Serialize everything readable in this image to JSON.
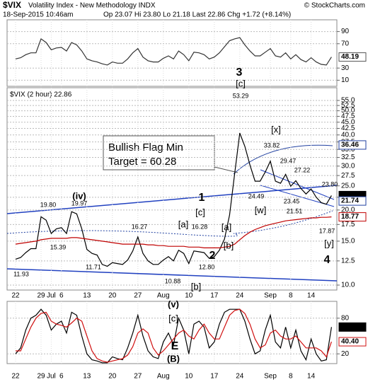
{
  "header": {
    "symbol": "$VIX",
    "name": "Volatility Index - New Methodology INDX",
    "source": "© StockCharts.com",
    "date": "18-Sep-2015 10:46am",
    "quote": "Op 23.07 Hi 23.80 Lo 21.18 Last 22.86 Chg +1.72 (+8.14%)"
  },
  "chart_data": [
    {
      "type": "line",
      "series": [
        {
          "color": "#333333",
          "values": [
            45,
            47,
            52,
            55,
            55,
            78,
            72,
            60,
            63,
            64,
            58,
            72,
            68,
            58,
            45,
            42,
            40,
            37,
            35,
            40,
            38,
            38,
            45,
            55,
            62,
            48,
            42,
            40,
            40,
            46,
            50,
            45,
            58,
            52,
            42,
            56,
            55,
            52,
            45,
            48,
            55,
            65,
            75,
            78,
            80,
            68,
            58,
            50,
            50,
            56,
            62,
            50,
            48,
            55,
            45,
            52,
            44,
            40,
            47,
            40,
            36,
            35,
            48.19
          ]
        }
      ],
      "ylim": [
        0,
        100
      ],
      "yticks": [
        90,
        70,
        30,
        10
      ],
      "grid": true,
      "markers": [
        {
          "value": 48.19,
          "color": "#555555"
        }
      ]
    },
    {
      "type": "line",
      "title": "$VIX (2 hour) 22.86",
      "categories": [
        "22",
        null,
        null,
        null,
        null,
        "29",
        null,
        "Jul",
        null,
        "6",
        null,
        null,
        null,
        null,
        "13",
        null,
        null,
        null,
        null,
        "20",
        null,
        null,
        null,
        null,
        "27",
        null,
        null,
        null,
        null,
        "Aug",
        null,
        null,
        null,
        null,
        "10",
        null,
        null,
        null,
        null,
        "17",
        null,
        null,
        null,
        null,
        "24",
        null,
        null,
        null,
        null,
        null,
        "Sep",
        null,
        null,
        null,
        "8",
        null,
        null,
        null,
        "14",
        null,
        null,
        null,
        null
      ],
      "series": [
        {
          "color": "#000000",
          "values": [
            12.7,
            12.9,
            13.5,
            14.0,
            14.0,
            18.8,
            18.2,
            16.1,
            16.8,
            17.0,
            16.1,
            19.7,
            19.3,
            16.8,
            13.9,
            13.4,
            13.2,
            12.1,
            11.9,
            12.3,
            12.2,
            12.1,
            12.6,
            13.7,
            15.6,
            13.4,
            12.5,
            12.1,
            12.1,
            12.6,
            13.0,
            12.5,
            13.8,
            13.4,
            12.2,
            13.7,
            13.6,
            13.5,
            12.8,
            13.0,
            13.8,
            15.3,
            19.1,
            28.0,
            40.7,
            36.0,
            30.3,
            26.1,
            26.1,
            28.4,
            31.4,
            26.1,
            25.6,
            27.8,
            24.9,
            26.2,
            24.4,
            23.2,
            24.3,
            22.5,
            21.4,
            21.1,
            22.86
          ]
        },
        {
          "color": "#c00000",
          "values": [
            14.6,
            14.7,
            14.8,
            14.9,
            15.0,
            15.2,
            15.3,
            15.4,
            15.4,
            15.4,
            15.4,
            15.5,
            15.5,
            15.4,
            15.3,
            15.2,
            15.1,
            15.0,
            14.9,
            14.8,
            14.7,
            14.6,
            14.6,
            14.6,
            14.6,
            14.6,
            14.5,
            14.5,
            14.4,
            14.4,
            14.3,
            14.3,
            14.3,
            14.3,
            14.2,
            14.2,
            14.2,
            14.1,
            14.1,
            14.1,
            14.1,
            14.2,
            14.3,
            14.6,
            15.2,
            15.8,
            16.3,
            16.7,
            17.0,
            17.3,
            17.5,
            17.7,
            17.9,
            18.1,
            18.2,
            18.3,
            18.4,
            18.5,
            18.6,
            18.6,
            18.7,
            18.7,
            18.77
          ]
        }
      ],
      "ylim": [
        10,
        55
      ],
      "log_scale": true,
      "grid": true,
      "yticks": [
        {
          "value": 10,
          "label": "10.0"
        },
        {
          "value": 12.5,
          "label": "12.5"
        },
        {
          "value": 15,
          "label": "15.0"
        },
        {
          "value": 17.5,
          "label": "17.5"
        },
        {
          "value": 20,
          "label": "20.0"
        },
        {
          "value": 22.5,
          "label": "22.5"
        },
        {
          "value": 25,
          "label": "25.0"
        },
        {
          "value": 27.5,
          "label": "27.5"
        },
        {
          "value": 30,
          "label": "30.0"
        },
        {
          "value": 32.5,
          "label": "32.5"
        },
        {
          "value": 35,
          "label": "35.0"
        },
        {
          "value": 37.5,
          "label": "37.5"
        },
        {
          "value": 40,
          "label": "40.0"
        },
        {
          "value": 42.5,
          "label": "42.5"
        },
        {
          "value": 45,
          "label": "45.0"
        },
        {
          "value": 47.5,
          "label": "47.5"
        },
        {
          "value": 50,
          "label": "50.0"
        },
        {
          "value": 52.5,
          "label": "52.5"
        },
        {
          "value": 55,
          "label": "55.0"
        }
      ],
      "markers": [
        {
          "value": 36.46,
          "color": "#2040a0"
        },
        {
          "value": 22.86,
          "color": "#000000"
        },
        {
          "value": 21.74,
          "color": "#2040a0"
        },
        {
          "value": 18.77,
          "color": "#c00000"
        }
      ],
      "annotations": [
        {
          "text": "53.29",
          "color": "#000"
        },
        {
          "text": "3",
          "color": "#7a1fa2"
        },
        {
          "text": "[c]",
          "color": "#d01010"
        },
        {
          "text": "[x]",
          "color": "#d01010"
        },
        {
          "text": "33.82",
          "color": "#000"
        },
        {
          "text": "29.47",
          "color": "#000"
        },
        {
          "text": "27.22",
          "color": "#000"
        },
        {
          "text": "23.80",
          "color": "#000"
        },
        {
          "text": "24.49",
          "color": "#000"
        },
        {
          "text": "[w]",
          "color": "#d01010"
        },
        {
          "text": "23.45",
          "color": "#000"
        },
        {
          "text": "21.51",
          "color": "#000"
        },
        {
          "text": "17.87",
          "color": "#000"
        },
        {
          "text": "[y]",
          "color": "#d01010"
        },
        {
          "text": "4",
          "color": "#7a1fa2"
        },
        {
          "text": "1",
          "color": "#7a1fa2"
        },
        {
          "text": "19.80",
          "color": "#000"
        },
        {
          "text": "(iv)",
          "color": "#1a8a1a"
        },
        {
          "text": "19.97",
          "color": "#000"
        },
        {
          "text": "[c]",
          "color": "#d01010"
        },
        {
          "text": "[a]",
          "color": "#d01010"
        },
        {
          "text": "16.27",
          "color": "#000"
        },
        {
          "text": "16.28",
          "color": "#000"
        },
        {
          "text": "[a]",
          "color": "#d01010"
        },
        {
          "text": "15.39",
          "color": "#000"
        },
        {
          "text": "[b]",
          "color": "#d01010"
        },
        {
          "text": "2",
          "color": "#7a1fa2"
        },
        {
          "text": "12.80",
          "color": "#000"
        },
        {
          "text": "11.93",
          "color": "#000"
        },
        {
          "text": "11.71",
          "color": "#000"
        },
        {
          "text": "10.88",
          "color": "#000"
        },
        {
          "text": "[b]",
          "color": "#d01010"
        }
      ],
      "callout": [
        "Bullish Flag Min",
        "Target = 60.28"
      ]
    },
    {
      "type": "line",
      "categories": [
        "22",
        null,
        null,
        null,
        null,
        "29",
        null,
        "Jul",
        null,
        "6",
        null,
        null,
        null,
        null,
        "13",
        null,
        null,
        null,
        null,
        "20",
        null,
        null,
        null,
        null,
        "27",
        null,
        null,
        null,
        null,
        "Aug",
        null,
        null,
        null,
        null,
        "10",
        null,
        null,
        null,
        null,
        "17",
        null,
        null,
        null,
        null,
        "24",
        null,
        null,
        null,
        null,
        null,
        "Sep",
        null,
        null,
        null,
        "8",
        null,
        null,
        null,
        "14",
        null,
        null,
        null,
        null
      ],
      "series": [
        {
          "color": "#000000",
          "values": [
            20,
            30,
            60,
            80,
            85,
            95,
            85,
            60,
            70,
            75,
            55,
            90,
            85,
            50,
            20,
            10,
            8,
            5,
            5,
            15,
            12,
            10,
            30,
            55,
            85,
            50,
            25,
            15,
            12,
            40,
            55,
            35,
            80,
            60,
            20,
            70,
            75,
            65,
            30,
            40,
            70,
            90,
            95,
            95,
            95,
            75,
            45,
            20,
            25,
            60,
            85,
            40,
            30,
            65,
            30,
            60,
            25,
            10,
            45,
            20,
            8,
            10,
            65.1
          ]
        },
        {
          "color": "#d01010",
          "values": [
            25,
            25,
            45,
            65,
            80,
            88,
            90,
            75,
            70,
            68,
            65,
            72,
            80,
            75,
            50,
            25,
            12,
            8,
            6,
            8,
            10,
            12,
            18,
            32,
            55,
            62,
            55,
            30,
            18,
            25,
            35,
            45,
            55,
            60,
            50,
            45,
            60,
            70,
            55,
            45,
            45,
            65,
            85,
            93,
            95,
            88,
            70,
            45,
            30,
            35,
            55,
            60,
            50,
            45,
            45,
            50,
            40,
            30,
            30,
            30,
            25,
            15,
            40.4
          ]
        }
      ],
      "ylim": [
        0,
        100
      ],
      "yticks": [
        80,
        20
      ],
      "grid": true,
      "markers": [
        {
          "value": 65.1,
          "label": "65.10",
          "color": "#000000"
        },
        {
          "value": 40.4,
          "label": "40.40",
          "color": "#d01010"
        }
      ],
      "annotations": [
        {
          "text": "(v)",
          "color": "#1a8a1a"
        },
        {
          "text": "[c]",
          "color": "#d01010"
        },
        {
          "text": "E",
          "color": "#7a1fa2"
        },
        {
          "text": "(B)",
          "color": "#000"
        }
      ]
    }
  ]
}
